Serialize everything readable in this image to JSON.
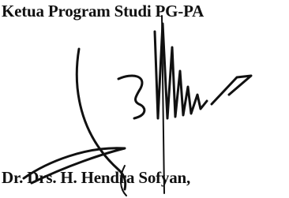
{
  "position": "Ketua Program Studi PG-PA",
  "name": "Dr. Drs. H. Hendra Sofyan,"
}
